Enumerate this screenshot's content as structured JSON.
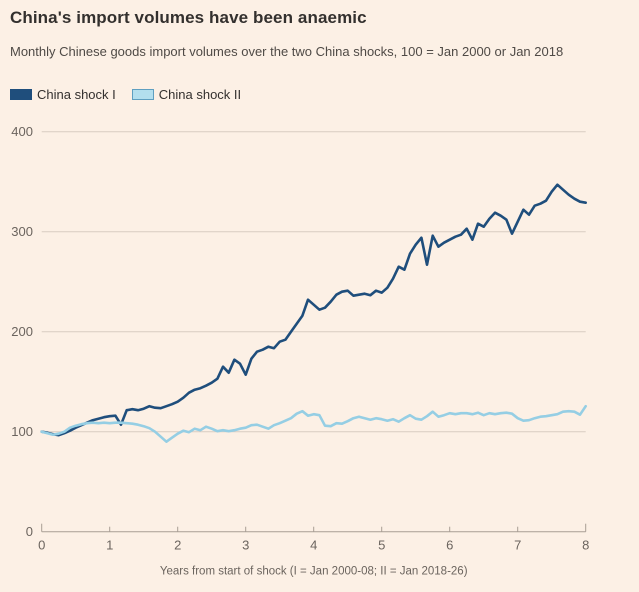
{
  "header": {
    "title": "China's import volumes have been anaemic",
    "subtitle": "Monthly Chinese goods import volumes over the two China shocks, 100 = Jan 2000 or Jan 2018"
  },
  "legend": [
    {
      "label": "China shock I",
      "color": "#1f4e7c",
      "border": "#1f4e7c"
    },
    {
      "label": "China shock II",
      "color": "#b3dfee",
      "border": "#5f9fc0"
    }
  ],
  "colors": {
    "background": "#fcf0e5",
    "gridline": "#d8ccc2",
    "axis": "#a89d94",
    "tick_text": "#6b645e",
    "series1": "#1f4e7c",
    "series2": "#95cee4"
  },
  "chart_data": {
    "type": "line",
    "title": "China's import volumes have been anaemic",
    "subtitle": "Monthly Chinese goods import volumes over the two China shocks, 100 = Jan 2000 or Jan 2018",
    "xlabel": "Years from start of shock (I = Jan 2000-08; II = Jan 2018-26)",
    "ylabel": "",
    "xlim": [
      0,
      8
    ],
    "ylim": [
      0,
      415
    ],
    "x_ticks": [
      0,
      1,
      2,
      3,
      4,
      5,
      6,
      7,
      8
    ],
    "y_ticks": [
      0,
      100,
      200,
      300,
      400
    ],
    "grid": "horizontal",
    "legend_position": "top-left",
    "x_unit": "years (monthly data, x = month/12)",
    "series": [
      {
        "name": "China shock I",
        "color": "#1f4e7c",
        "values": [
          100,
          99,
          97.5,
          96.5,
          98.5,
          101,
          104,
          106.5,
          109,
          111.5,
          113,
          114.5,
          115.5,
          116,
          107,
          121.5,
          122.5,
          121.5,
          123,
          125.5,
          124,
          123.5,
          125.5,
          127.5,
          130,
          134,
          139,
          142,
          143.5,
          146,
          149,
          153,
          165,
          159,
          172,
          168,
          157,
          173,
          180,
          182,
          185,
          183.5,
          190,
          192,
          200,
          208,
          216,
          232,
          227,
          222,
          224,
          230,
          237,
          240,
          241,
          236,
          237,
          238,
          236.5,
          241,
          239,
          244,
          253,
          265,
          262,
          278,
          287,
          294,
          267,
          296,
          285,
          289,
          292,
          295,
          297,
          303,
          292,
          308,
          305,
          313,
          319,
          316,
          312,
          298,
          310,
          322,
          317,
          326,
          328,
          331,
          340,
          347,
          342,
          337,
          333,
          330,
          329
        ]
      },
      {
        "name": "China shock II",
        "color": "#95cee4",
        "values": [
          100,
          98.5,
          97,
          98,
          100,
          104,
          106,
          107.5,
          108.5,
          109,
          108.5,
          109,
          108.5,
          109,
          109,
          108.5,
          108,
          107,
          105.5,
          103.5,
          100,
          95,
          90,
          94,
          98,
          101,
          99.5,
          103,
          101.5,
          105,
          103,
          100.5,
          101.5,
          100.5,
          101.5,
          103,
          104,
          106.5,
          107,
          105,
          103,
          106.5,
          108.5,
          111,
          113.5,
          118,
          120.5,
          116,
          117.5,
          116.5,
          106,
          105.5,
          108.5,
          108,
          110.5,
          113.5,
          115,
          113.5,
          112,
          113.5,
          112.5,
          111,
          112.5,
          110,
          113.5,
          116.5,
          113,
          112,
          115.5,
          120,
          115,
          116.5,
          118.5,
          117.5,
          118.5,
          118.5,
          117.5,
          119,
          116.5,
          118.5,
          117.5,
          118.5,
          119,
          118,
          113.5,
          111,
          111.5,
          113.5,
          115,
          115.5,
          116.5,
          117.5,
          120,
          120.5,
          120,
          117,
          125.5
        ]
      }
    ]
  }
}
